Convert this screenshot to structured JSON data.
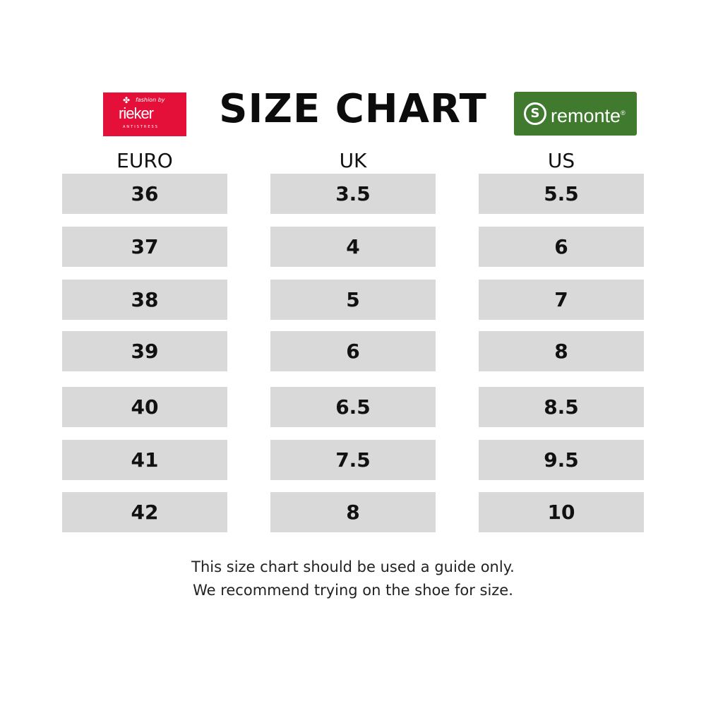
{
  "title": "SIZE CHART",
  "logos": {
    "left": {
      "brand": "rieker",
      "tagline": "fashion by",
      "sub": "ANTISTRESS",
      "color": "#e4103a"
    },
    "right": {
      "brand": "remonte",
      "mark": "®",
      "color": "#3f7a2e"
    }
  },
  "columns": [
    {
      "header": "EURO",
      "values": [
        "36",
        "37",
        "38",
        "39",
        "40",
        "41",
        "42"
      ]
    },
    {
      "header": "UK",
      "values": [
        "3.5",
        "4",
        "5",
        "6",
        "6.5",
        "7.5",
        "8"
      ]
    },
    {
      "header": "US",
      "values": [
        "5.5",
        "6",
        "7",
        "8",
        "8.5",
        "9.5",
        "10"
      ]
    }
  ],
  "footer": [
    "This size chart should be used a guide only.",
    "We recommend trying on the shoe for size."
  ],
  "cell_color": "#d9d9d9"
}
